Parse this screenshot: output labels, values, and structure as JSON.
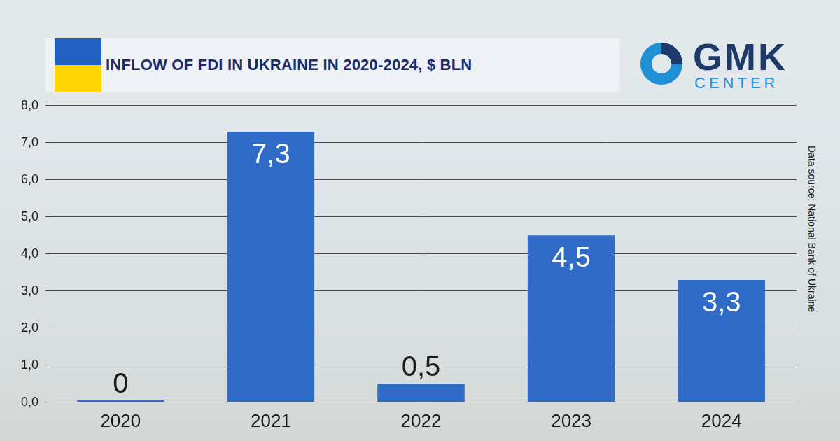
{
  "chart_data": {
    "type": "bar",
    "title": "INFLOW OF FDI IN UKRAINE IN 2020-2024, $ BLN",
    "logo": [
      "GMK",
      "CENTER"
    ],
    "source": "Data source: National Bank of Ukraine",
    "categories": [
      "2020",
      "2021",
      "2022",
      "2023",
      "2024"
    ],
    "values": [
      0,
      7.3,
      0.5,
      4.5,
      3.3
    ],
    "value_labels": [
      "0",
      "7,3",
      "0,5",
      "4,5",
      "3,3"
    ],
    "color": "#2f6bc7",
    "ylim": [
      0,
      8
    ],
    "yticks": [
      {
        "value": 0,
        "label": "0,0"
      },
      {
        "value": 1,
        "label": "1,0"
      },
      {
        "value": 2,
        "label": "2,0"
      },
      {
        "value": 3,
        "label": "3,0"
      },
      {
        "value": 4,
        "label": "4,0"
      },
      {
        "value": 5,
        "label": "5,0"
      },
      {
        "value": 6,
        "label": "6,0"
      },
      {
        "value": 7,
        "label": "7,0"
      },
      {
        "value": 8,
        "label": "8,0"
      }
    ],
    "grid": true,
    "data_labels": true
  }
}
